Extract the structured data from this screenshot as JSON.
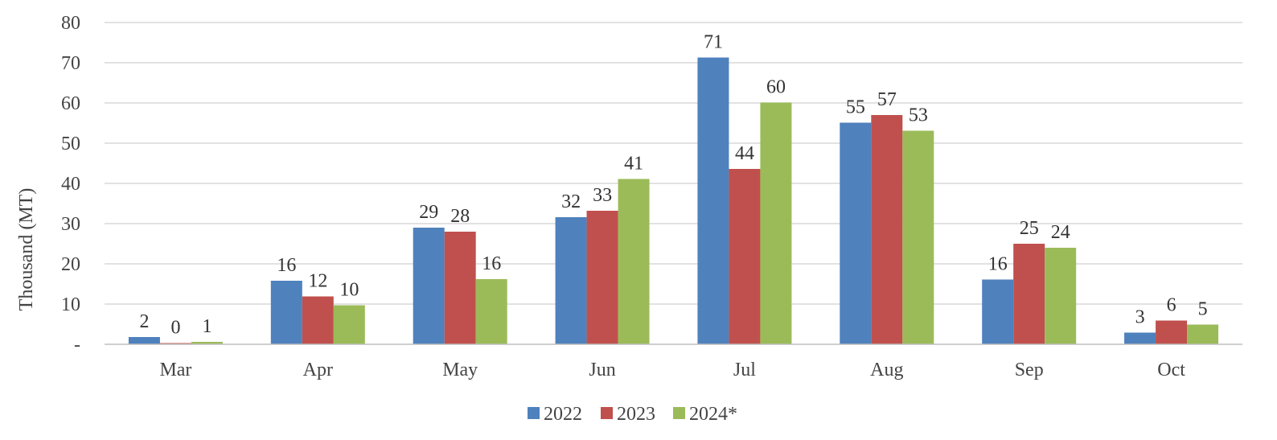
{
  "chart_data": {
    "type": "bar",
    "title": "",
    "xlabel": "",
    "ylabel": "Thousand  (MT)",
    "categories": [
      "Mar",
      "Apr",
      "May",
      "Jun",
      "Jul",
      "Aug",
      "Sep",
      "Oct"
    ],
    "ylim": [
      0,
      80
    ],
    "yticks": [
      0,
      10,
      20,
      30,
      40,
      50,
      60,
      70,
      80
    ],
    "ytick_labels": [
      "-",
      "10",
      "20",
      "30",
      "40",
      "50",
      "60",
      "70",
      "80"
    ],
    "grid": true,
    "legend_position": "bottom",
    "series": [
      {
        "name": "2022",
        "color": "#4F81BD",
        "values": [
          1.8,
          15.8,
          29.0,
          31.6,
          71.3,
          55.1,
          16.1,
          2.9
        ],
        "labels": [
          "2",
          "16",
          "29",
          "32",
          "71",
          "55",
          "16",
          "3"
        ]
      },
      {
        "name": "2023",
        "color": "#C0504D",
        "values": [
          0.3,
          11.9,
          28.0,
          33.2,
          43.6,
          57.0,
          25.0,
          5.9
        ],
        "labels": [
          "0",
          "12",
          "28",
          "33",
          "44",
          "57",
          "25",
          "6"
        ]
      },
      {
        "name": "2024*",
        "color": "#9BBB59",
        "values": [
          0.6,
          9.7,
          16.2,
          41.1,
          60.1,
          53.1,
          24.0,
          4.9
        ],
        "labels": [
          "1",
          "10",
          "16",
          "41",
          "60",
          "53",
          "24",
          "5"
        ]
      }
    ]
  }
}
